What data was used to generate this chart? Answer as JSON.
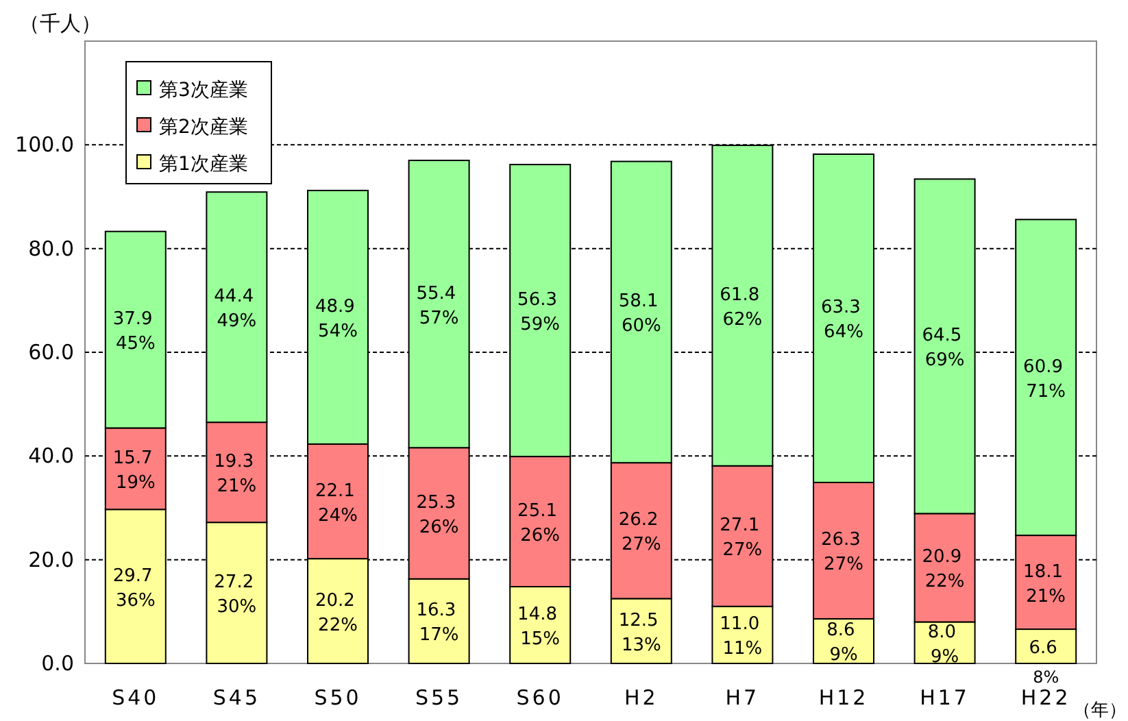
{
  "chart_data": {
    "type": "bar",
    "stacked": true,
    "ylabel": "（千人）",
    "xlabel": "（年）",
    "categories": [
      "S40",
      "S45",
      "S50",
      "S55",
      "S60",
      "H2",
      "H7",
      "H12",
      "H17",
      "H22"
    ],
    "series": [
      {
        "name": "第1次産業",
        "color": "#ffff99",
        "values": [
          29.7,
          27.2,
          20.2,
          16.3,
          14.8,
          12.5,
          11.0,
          8.6,
          8.0,
          6.6
        ],
        "value_labels": [
          "29.7 36%",
          "27.2 30%",
          "20.2 22%",
          "16.3 17%",
          "14.8 15%",
          "12.5 13%",
          "11.0 11%",
          "8.6 9%",
          "8.0 9%",
          "6.6 8%"
        ]
      },
      {
        "name": "第2次産業",
        "color": "#ff8080",
        "values": [
          15.7,
          19.3,
          22.1,
          25.3,
          25.1,
          26.2,
          27.1,
          26.3,
          20.9,
          18.1
        ],
        "value_labels": [
          "15.7 19%",
          "19.3 21%",
          "22.1 24%",
          "25.3 26%",
          "25.1 26%",
          "26.2 27%",
          "27.1 27%",
          "26.3 27%",
          "20.9 22%",
          "18.1 21%"
        ]
      },
      {
        "name": "第3次産業",
        "color": "#99ff99",
        "values": [
          37.9,
          44.4,
          48.9,
          55.4,
          56.3,
          58.1,
          61.8,
          63.3,
          64.5,
          60.9
        ],
        "value_labels": [
          "37.9 45%",
          "44.4 49%",
          "48.9 54%",
          "55.4 57%",
          "56.3 59%",
          "58.1 60%",
          "61.8 62%",
          "63.3 64%",
          "64.5 69%",
          "60.9 71%"
        ]
      }
    ],
    "ylim": [
      0,
      120
    ],
    "yticks": [
      {
        "value": 0,
        "label": "0.0"
      },
      {
        "value": 20,
        "label": "20.0"
      },
      {
        "value": 40,
        "label": "40.0"
      },
      {
        "value": 60,
        "label": "60.0"
      },
      {
        "value": 80,
        "label": "80.0"
      },
      {
        "value": 100,
        "label": "100.0"
      }
    ],
    "grid": "y",
    "legend": "top left"
  }
}
